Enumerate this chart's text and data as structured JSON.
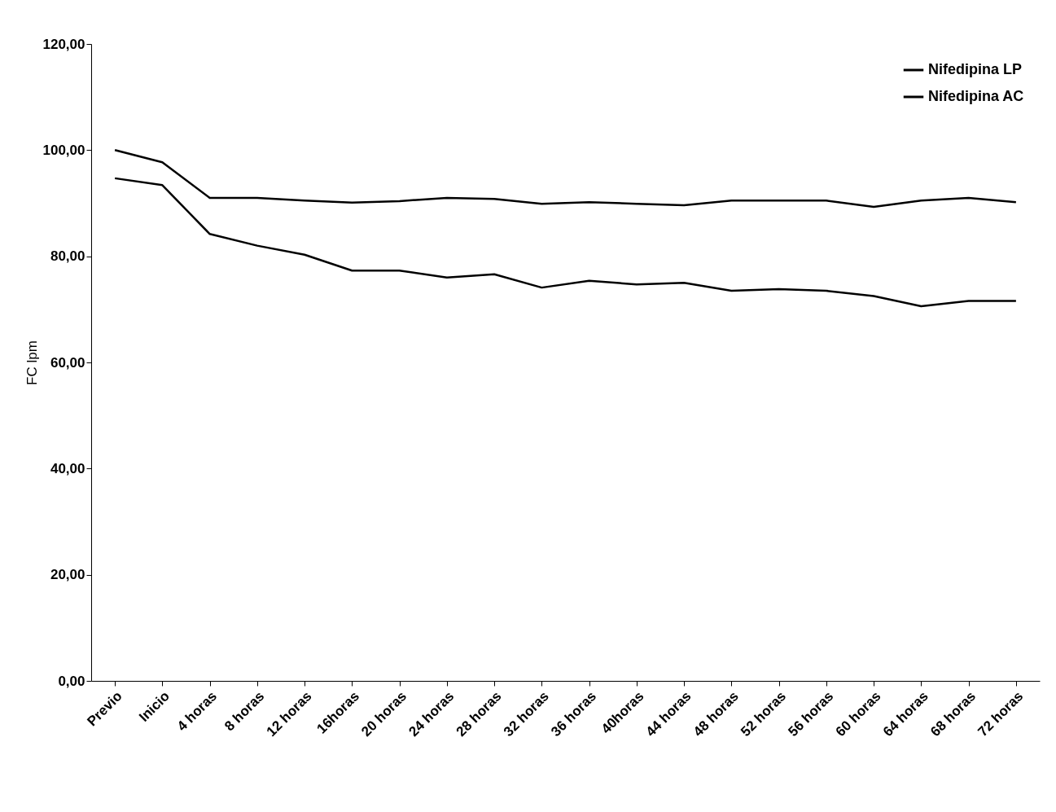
{
  "chart_data": {
    "type": "line",
    "ylabel": "FC lpm",
    "categories": [
      "Previo",
      "Inicio",
      "4 horas",
      "8 horas",
      "12 horas",
      "16horas",
      "20 horas",
      "24 horas",
      "28 horas",
      "32 horas",
      "36 horas",
      "40horas",
      "44 horas",
      "48 horas",
      "52 horas",
      "56 horas",
      "60 horas",
      "64 horas",
      "68 horas",
      "72 horas"
    ],
    "series": [
      {
        "name": "Nifedipina LP",
        "color": "#000000",
        "values": [
          100.0,
          97.7,
          91.0,
          91.0,
          90.5,
          90.1,
          90.4,
          91.0,
          90.8,
          89.9,
          90.2,
          89.9,
          89.6,
          90.5,
          90.5,
          90.5,
          89.3,
          90.5,
          91.0,
          90.2
        ]
      },
      {
        "name": "Nifedipina AC",
        "color": "#000000",
        "values": [
          94.7,
          93.4,
          84.2,
          82.0,
          80.3,
          77.3,
          77.3,
          76.0,
          76.6,
          74.1,
          75.4,
          74.7,
          75.0,
          73.5,
          73.8,
          73.5,
          72.5,
          70.6,
          71.6,
          71.6
        ]
      }
    ],
    "ylim": [
      0,
      120
    ],
    "yticks": [
      {
        "value": 0,
        "label": "0,00"
      },
      {
        "value": 20,
        "label": "20,00"
      },
      {
        "value": 40,
        "label": "40,00"
      },
      {
        "value": 60,
        "label": "60,00"
      },
      {
        "value": 80,
        "label": "80,00"
      },
      {
        "value": 100,
        "label": "100,00"
      },
      {
        "value": 120,
        "label": "120,00"
      }
    ],
    "grid": false,
    "legend": "top right",
    "marker": "none",
    "line_style": "solid"
  }
}
